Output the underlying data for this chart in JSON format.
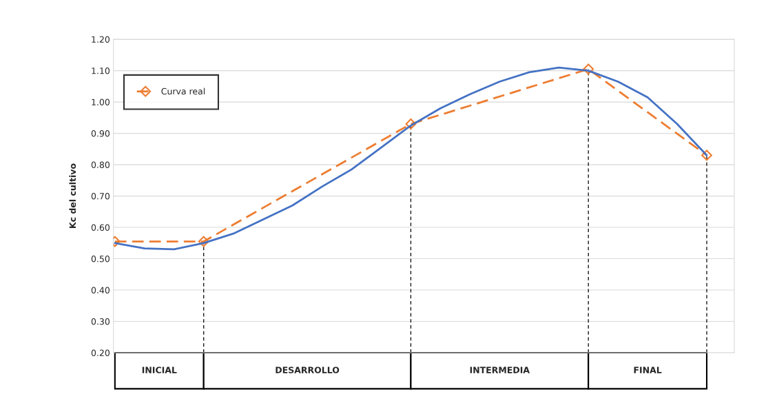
{
  "chart_data": {
    "type": "line",
    "ylabel": "Kc del cultivo",
    "ylim": [
      0.2,
      1.2
    ],
    "categories": [
      null,
      null,
      null,
      null,
      null,
      null,
      null,
      null,
      null,
      null,
      null,
      null,
      null,
      null,
      null,
      null,
      null,
      null,
      null,
      null,
      null
    ],
    "yticks": [
      {
        "value": 0.2,
        "label": "0.20"
      },
      {
        "value": 0.3,
        "label": "0.30"
      },
      {
        "value": 0.4,
        "label": "0.40"
      },
      {
        "value": 0.5,
        "label": "0.50"
      },
      {
        "value": 0.6,
        "label": "0.60"
      },
      {
        "value": 0.7,
        "label": "0.70"
      },
      {
        "value": 0.8,
        "label": "0.80"
      },
      {
        "value": 0.9,
        "label": "0.90"
      },
      {
        "value": 1.0,
        "label": "1.00"
      },
      {
        "value": 1.1,
        "label": "1.10"
      },
      {
        "value": 1.2,
        "label": "1.20"
      }
    ],
    "tick_labels": "y",
    "grid": "y",
    "legend": "top left",
    "series": [
      {
        "name": "Curva real",
        "color": "#ed7d31",
        "marker": "diamond",
        "line_style": "dashed",
        "values": [
          0.555,
          null,
          null,
          0.555,
          null,
          null,
          null,
          null,
          null,
          null,
          0.93,
          null,
          null,
          null,
          null,
          null,
          1.105,
          null,
          null,
          null,
          0.83
        ]
      },
      {
        "color": "#4472c4",
        "marker": "none",
        "line_style": "solid",
        "values": [
          0.55,
          0.533,
          0.53,
          0.55,
          0.58,
          0.625,
          0.67,
          0.73,
          0.785,
          0.855,
          0.925,
          0.98,
          1.025,
          1.065,
          1.095,
          1.11,
          1.1,
          1.065,
          1.015,
          0.93,
          0.83
        ]
      }
    ],
    "annotations": [
      "INICIAL",
      "DESARROLLO",
      "INTERMEDIA",
      "FINAL"
    ]
  }
}
